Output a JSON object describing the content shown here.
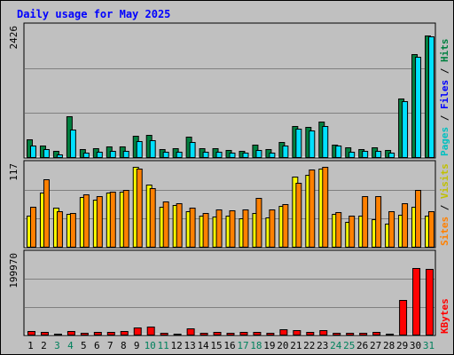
{
  "chart_data": {
    "type": "bar",
    "title": "Daily usage for May 2025",
    "categories": [
      "1",
      "2",
      "3",
      "4",
      "5",
      "6",
      "7",
      "8",
      "9",
      "10",
      "11",
      "12",
      "13",
      "14",
      "15",
      "16",
      "17",
      "18",
      "19",
      "20",
      "21",
      "22",
      "23",
      "24",
      "25",
      "26",
      "27",
      "28",
      "29",
      "30",
      "31"
    ],
    "weekend_days": [
      "3",
      "4",
      "10",
      "11",
      "17",
      "18",
      "24",
      "25",
      "31"
    ],
    "panels": [
      {
        "id": "hits-files-pages",
        "max_label": "2426",
        "ylim": [
          0,
          2426
        ],
        "legend": [
          "Pages",
          "Files",
          "Hits"
        ],
        "series": [
          {
            "name": "Hits",
            "color": "#008040",
            "values": [
              335,
              235,
              135,
              771,
              160,
              175,
              205,
              210,
              405,
              430,
              170,
              180,
              395,
              185,
              175,
              140,
              130,
              240,
              165,
              295,
              584,
              564,
              674,
              251,
              195,
              170,
              195,
              140,
              1091,
              1912,
              2240
            ]
          },
          {
            "name": "Files",
            "color": "#00e0ff",
            "values": [
              225,
              160,
              65,
              524,
              90,
              120,
              125,
              130,
              310,
              330,
              115,
              120,
              295,
              120,
              110,
              100,
              90,
              145,
              100,
              225,
              535,
              505,
              580,
              220,
              110,
              125,
              125,
              90,
              1041,
              1862,
              2226
            ]
          }
        ]
      },
      {
        "id": "sites-visits",
        "max_label": "117",
        "ylim": [
          0,
          117
        ],
        "legend": [
          "Sites",
          "Visits"
        ],
        "series": [
          {
            "name": "Visits",
            "color": "#ffff00",
            "values": [
              44,
              76,
              55,
              47,
              70,
              66,
              76,
              78,
              112,
              88,
              57,
              59,
              50,
              44,
              43,
              44,
              41,
              48,
              42,
              58,
              99,
              101,
              110,
              47,
              36,
              44,
              40,
              33,
              46,
              57,
              44
            ]
          },
          {
            "name": "Sites",
            "color": "#ff8000",
            "values": [
              57,
              95,
              50,
              48,
              74,
              72,
              78,
              80,
              110,
              82,
              64,
              62,
              55,
              48,
              53,
              52,
              53,
              69,
              53,
              60,
              90,
              108,
              112,
              49,
              44,
              71,
              72,
              50,
              62,
              80,
              51
            ]
          }
        ]
      },
      {
        "id": "kbytes",
        "max_label": "199970",
        "ylim": [
          0,
          199970
        ],
        "legend": [
          "KBytes"
        ],
        "series": [
          {
            "name": "KBytes",
            "color": "#ff0000",
            "values": [
              10000,
              9500,
              5200,
              11000,
              6500,
              8000,
              8200,
              10500,
              18500,
              20500,
              7500,
              5000,
              16500,
              6000,
              9000,
              6000,
              9500,
              8000,
              7500,
              14000,
              12500,
              9300,
              13300,
              5500,
              5500,
              7300,
              9500,
              5000,
              87000,
              163000,
              162000
            ]
          }
        ]
      }
    ]
  },
  "colors": {
    "background": "#c0c0c0",
    "plot_background": "#c0c0c0",
    "title": "#0000ff",
    "weekend_label": "#00805c",
    "weekday_label": "#000000",
    "gridline": "#808080",
    "legend_pages": "#00c0c0",
    "legend_files": "#0000ff",
    "legend_hits": "#008040",
    "legend_sites": "#ff8000",
    "legend_visits": "#c0c000",
    "legend_kbytes": "#ff0000"
  }
}
